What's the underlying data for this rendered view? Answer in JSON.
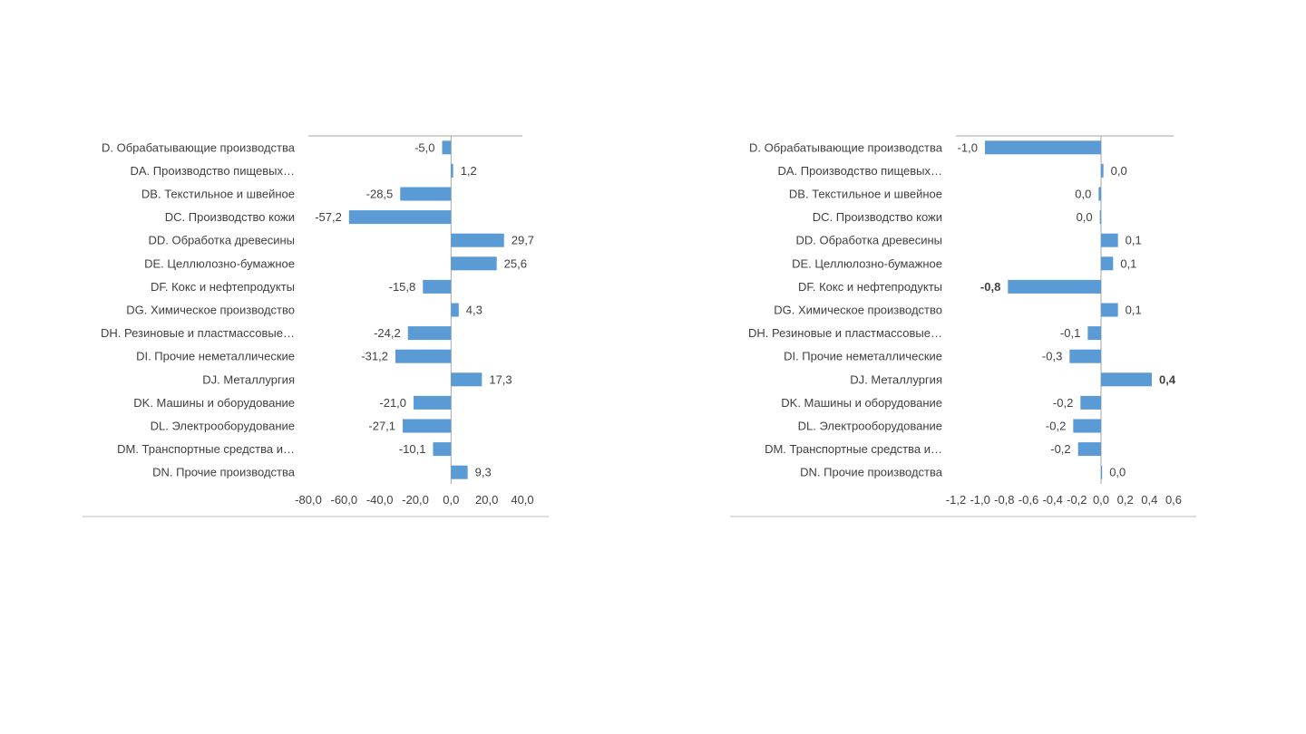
{
  "chart_data": [
    {
      "type": "bar",
      "orientation": "horizontal",
      "categories": [
        "D. Обрабатывающие производства",
        "DA. Производство пищевых…",
        "DB. Текстильное и швейное",
        "DC. Производство кожи",
        "DD. Обработка древесины",
        "DE. Целлюлозно-бумажное",
        "DF. Кокс и нефтепродукты",
        "DG. Химическое производство",
        "DH. Резиновые и пластмассовые…",
        "DI. Прочие неметаллические",
        "DJ. Металлургия",
        "DK. Машины и оборудование",
        "DL. Электрооборудование",
        "DM. Транспортные средства и…",
        "DN. Прочие производства"
      ],
      "values": [
        -5.0,
        1.2,
        -28.5,
        -57.2,
        29.7,
        25.6,
        -15.8,
        4.3,
        -24.2,
        -31.2,
        17.3,
        -21.0,
        -27.1,
        -10.1,
        9.3
      ],
      "value_labels": [
        "-5,0",
        "1,2",
        "-28,5",
        "-57,2",
        "29,7",
        "25,6",
        "-15,8",
        "4,3",
        "-24,2",
        "-31,2",
        "17,3",
        "-21,0",
        "-27,1",
        "-10,1",
        "9,3"
      ],
      "xlim": [
        -80,
        40
      ],
      "ticks": [
        -80,
        -60,
        -40,
        -20,
        0,
        20,
        40
      ],
      "tick_labels": [
        "-80,0",
        "-60,0",
        "-40,0",
        "-20,0",
        "0,0",
        "20,0",
        "40,0"
      ],
      "bar_color": "#5b9bd5",
      "label_color": "#404040",
      "highlight_labels": {},
      "title": "",
      "xlabel": "",
      "ylabel": "",
      "grid": false
    },
    {
      "type": "bar",
      "orientation": "horizontal",
      "categories": [
        "D. Обрабатывающие производства",
        "DA. Производство пищевых…",
        "DB. Текстильное и швейное",
        "DC. Производство кожи",
        "DD. Обработка древесины",
        "DE. Целлюлозно-бумажное",
        "DF. Кокс и нефтепродукты",
        "DG. Химическое производство",
        "DH. Резиновые и пластмассовые…",
        "DI. Прочие неметаллические",
        "DJ. Металлургия",
        "DK. Машины и оборудование",
        "DL. Электрооборудование",
        "DM. Транспортные средства и…",
        "DN. Прочие производства"
      ],
      "values": [
        -0.96,
        0.02,
        -0.02,
        -0.01,
        0.14,
        0.1,
        -0.77,
        0.14,
        -0.11,
        -0.26,
        0.42,
        -0.17,
        -0.23,
        -0.19,
        0.0
      ],
      "value_labels": [
        "-1,0",
        "0,0",
        "0,0",
        "0,0",
        "0,1",
        "0,1",
        "-0,8",
        "0,1",
        "-0,1",
        "-0,3",
        "0,4",
        "-0,2",
        "-0,2",
        "-0,2",
        "0,0"
      ],
      "xlim": [
        -1.2,
        0.6
      ],
      "ticks": [
        -1.2,
        -1.0,
        -0.8,
        -0.6,
        -0.4,
        -0.2,
        0.0,
        0.2,
        0.4,
        0.6
      ],
      "tick_labels": [
        "-1,2",
        "-1,0",
        "-0,8",
        "-0,6",
        "-0,4",
        "-0,2",
        "0,0",
        "0,2",
        "0,4",
        "0,6"
      ],
      "bar_color": "#5b9bd5",
      "label_color": "#404040",
      "highlight_labels": {
        "6": "#e31a1c",
        "10": "#70ad47"
      },
      "title": "",
      "xlabel": "",
      "ylabel": "",
      "grid": false
    }
  ]
}
